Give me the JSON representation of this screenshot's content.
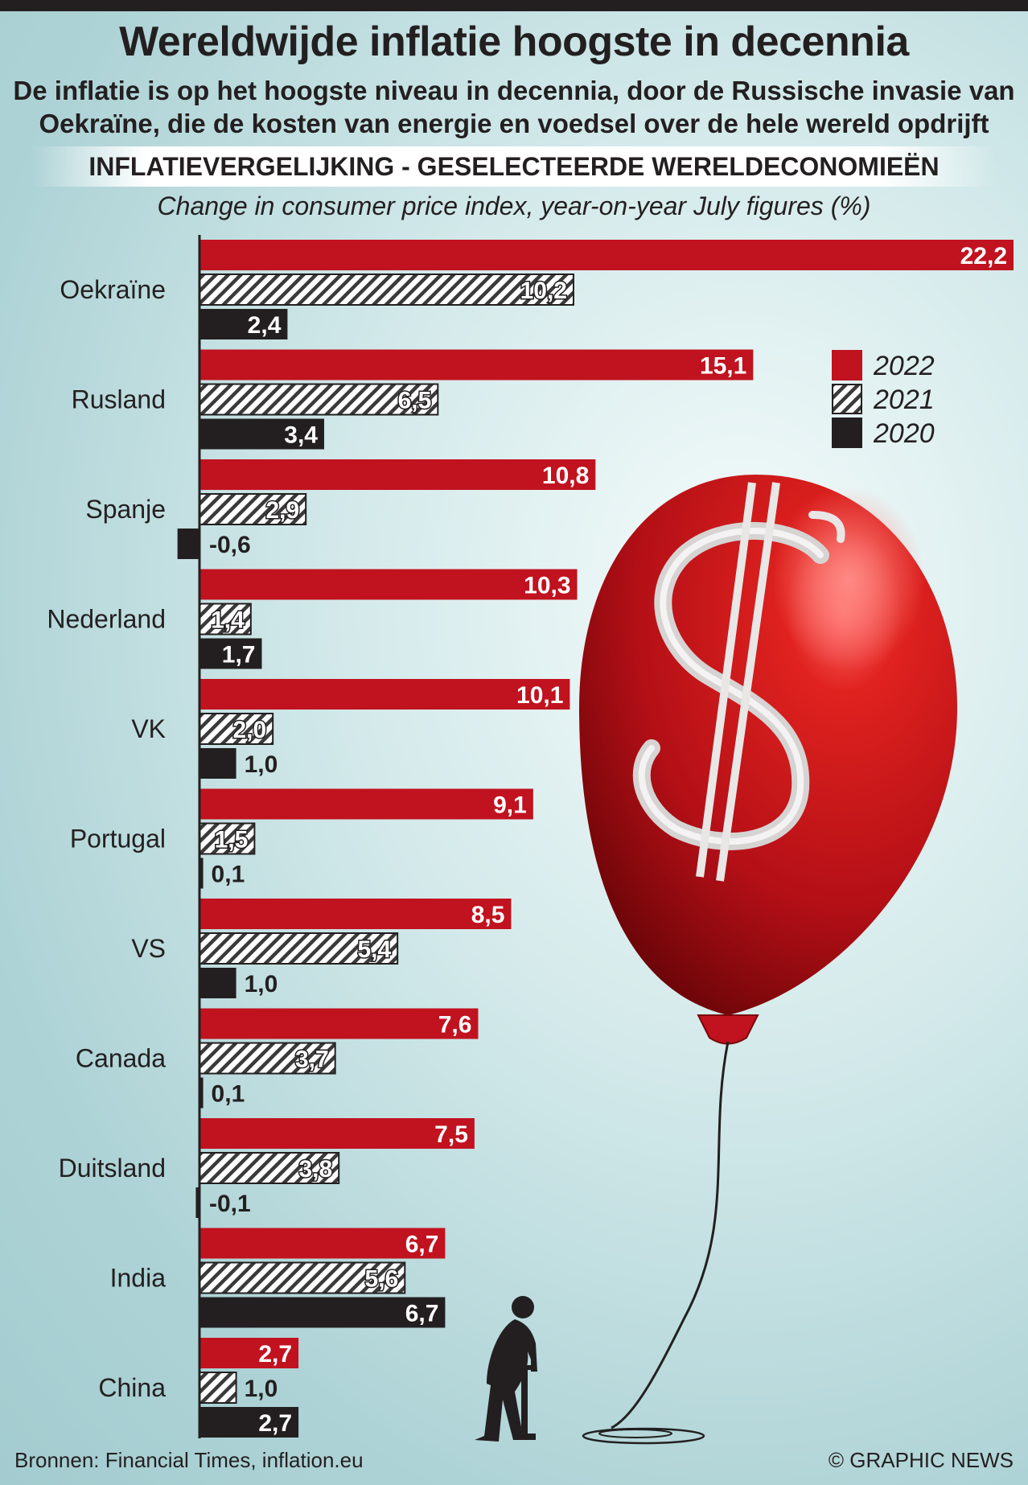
{
  "header": {
    "title": "Wereldwijde inflatie hoogste in decennia",
    "subtitle": "De inflatie is op het hoogste niveau in decennia, door de Russische invasie van Oekraïne, die de kosten van energie en voedsel over de hele wereld opdrijft",
    "section": "INFLATIEVERGELIJKING - GESELECTEERDE WERELDECONOMIEËN",
    "unit_label": "Change in consumer price index, year-on-year July figures (%)"
  },
  "legend": [
    {
      "label": "2022",
      "color": "#c1121f",
      "pattern": "solid"
    },
    {
      "label": "2021",
      "color": "#3a3a3a",
      "pattern": "hatched"
    },
    {
      "label": "2020",
      "color": "#231f20",
      "pattern": "solid"
    }
  ],
  "chart_data": {
    "type": "bar",
    "orientation": "horizontal",
    "title": "Wereldwijde inflatie hoogste in decennia",
    "xlabel": "Change in consumer price index, year-on-year July figures (%)",
    "ylabel": "",
    "xlim": [
      -1,
      22.2
    ],
    "categories": [
      "Oekraïne",
      "Rusland",
      "Spanje",
      "Nederland",
      "VK",
      "Portugal",
      "VS",
      "Canada",
      "Duitsland",
      "India",
      "China"
    ],
    "series": [
      {
        "name": "2022",
        "values": [
          22.2,
          15.1,
          10.8,
          10.3,
          10.1,
          9.1,
          8.5,
          7.6,
          7.5,
          6.7,
          2.7
        ],
        "labels": [
          "22,2",
          "15,1",
          "10,8",
          "10,3",
          "10,1",
          "9,1",
          "8,5",
          "7,6",
          "7,5",
          "6,7",
          "2,7"
        ]
      },
      {
        "name": "2021",
        "values": [
          10.2,
          6.5,
          2.9,
          1.4,
          2.0,
          1.5,
          5.4,
          3.7,
          3.8,
          5.6,
          1.0
        ],
        "labels": [
          "10,2",
          "6,5",
          "2,9",
          "1,4",
          "2,0",
          "1,5",
          "5,4",
          "3,7",
          "3,8",
          "5,6",
          "1,0"
        ]
      },
      {
        "name": "2020",
        "values": [
          2.4,
          3.4,
          -0.6,
          1.7,
          1.0,
          0.1,
          1.0,
          0.1,
          -0.1,
          6.7,
          2.7
        ],
        "labels": [
          "2,4",
          "3,4",
          "-0,6",
          "1,7",
          "1,0",
          "0,1",
          "1,0",
          "0,1",
          "-0,1",
          "6,7",
          "2,7"
        ]
      }
    ]
  },
  "footer": {
    "source": "Bronnen: Financial Times, inflation.eu",
    "credit": "© GRAPHIC NEWS"
  }
}
